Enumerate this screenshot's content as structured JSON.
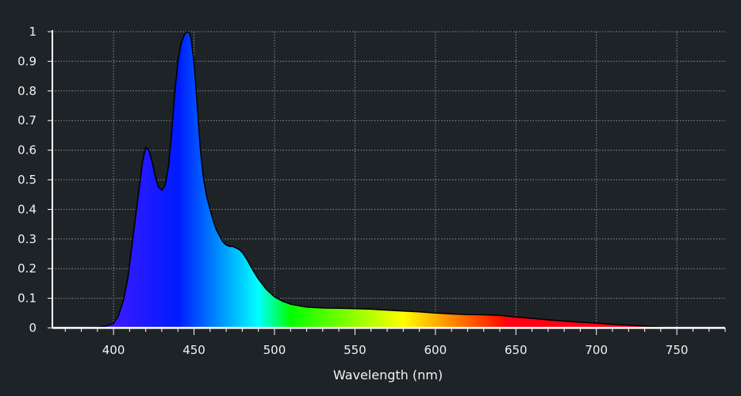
{
  "colors": {
    "background": "#1e2327",
    "grid": "#8a8f94",
    "axis": "#ffffff",
    "outline": "#000000"
  },
  "chart_data": {
    "type": "area",
    "title": "",
    "xlabel": "Wavelength (nm)",
    "ylabel": "",
    "xlim": [
      362,
      780
    ],
    "ylim": [
      0,
      1
    ],
    "grid": true,
    "legend": "none",
    "fill": "visible-spectrum gradient by wavelength",
    "x_ticks": [
      400,
      450,
      500,
      550,
      600,
      650,
      700,
      750
    ],
    "x_tick_labels": [
      "400",
      "450",
      "500",
      "550",
      "600",
      "650",
      "700",
      "750"
    ],
    "y_ticks": [
      0,
      0.1,
      0.2,
      0.3,
      0.4,
      0.5,
      0.6,
      0.7,
      0.8,
      0.9,
      1
    ],
    "y_tick_labels": [
      "0",
      "0.1",
      "0.2",
      "0.3",
      "0.4",
      "0.5",
      "0.6",
      "0.7",
      "0.8",
      "0.9",
      "1"
    ],
    "series": [
      {
        "x": [
          380,
          385,
          390,
          395,
          400,
          403,
          406,
          409,
          412,
          415,
          418,
          420,
          422,
          424,
          426,
          428,
          430,
          432,
          434,
          436,
          438,
          440,
          442,
          444,
          446,
          447,
          448,
          450,
          452,
          454,
          456,
          458,
          460,
          462,
          464,
          466,
          468,
          470,
          472,
          474,
          476,
          478,
          480,
          483,
          486,
          490,
          495,
          500,
          505,
          510,
          515,
          520,
          530,
          540,
          550,
          560,
          570,
          580,
          590,
          600,
          610,
          620,
          630,
          640,
          650,
          660,
          670,
          680,
          690,
          700,
          710,
          720,
          730,
          740,
          745
        ],
        "y": [
          0,
          0.001,
          0.003,
          0.006,
          0.015,
          0.04,
          0.09,
          0.17,
          0.3,
          0.43,
          0.56,
          0.61,
          0.6,
          0.56,
          0.51,
          0.475,
          0.465,
          0.48,
          0.54,
          0.65,
          0.79,
          0.9,
          0.96,
          0.99,
          1.0,
          0.995,
          0.98,
          0.9,
          0.75,
          0.6,
          0.5,
          0.44,
          0.4,
          0.36,
          0.33,
          0.31,
          0.29,
          0.28,
          0.275,
          0.275,
          0.27,
          0.265,
          0.255,
          0.23,
          0.2,
          0.165,
          0.13,
          0.105,
          0.09,
          0.08,
          0.075,
          0.07,
          0.067,
          0.066,
          0.065,
          0.063,
          0.06,
          0.057,
          0.054,
          0.05,
          0.047,
          0.045,
          0.044,
          0.042,
          0.037,
          0.032,
          0.027,
          0.023,
          0.019,
          0.016,
          0.012,
          0.009,
          0.006,
          0.003,
          0
        ]
      }
    ]
  }
}
